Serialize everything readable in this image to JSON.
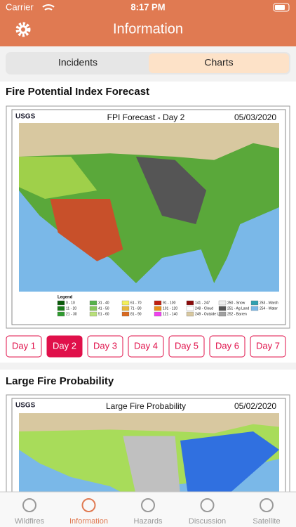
{
  "status_bar": {
    "carrier": "Carrier",
    "time": "8:17 PM"
  },
  "header": {
    "title": "Information"
  },
  "segments": {
    "items": [
      "Incidents",
      "Charts"
    ],
    "selected": 1
  },
  "sections": [
    {
      "title": "Fire Potential Index Forecast",
      "image": {
        "logo": "USGS",
        "title": "FPI Forecast - Day 2",
        "date": "05/03/2020",
        "legend_title": "Legend",
        "legend": [
          {
            "label": "0 - 10",
            "color": "#0a5a0a"
          },
          {
            "label": "11 - 20",
            "color": "#1a7a1a"
          },
          {
            "label": "21 - 30",
            "color": "#2f9a2f"
          },
          {
            "label": "31 - 40",
            "color": "#55b24a"
          },
          {
            "label": "41 - 50",
            "color": "#86c85a"
          },
          {
            "label": "51 - 60",
            "color": "#b9e07a"
          },
          {
            "label": "61 - 70",
            "color": "#f3ef5a"
          },
          {
            "label": "71 - 80",
            "color": "#e6b63a"
          },
          {
            "label": "81 - 90",
            "color": "#d96a20"
          },
          {
            "label": "91 - 100",
            "color": "#c02010"
          },
          {
            "label": "101 - 120",
            "color": "#e8901a"
          },
          {
            "label": "121 - 140",
            "color": "#f040f0"
          },
          {
            "label": "141 - 247",
            "color": "#8a0a0a"
          },
          {
            "label": "248 - Cloud",
            "color": "#ffffff"
          },
          {
            "label": "249 - Outside US",
            "color": "#d8c8a0"
          },
          {
            "label": "250 - Snow",
            "color": "#eeeeee"
          },
          {
            "label": "251 - Ag Land",
            "color": "#555555"
          },
          {
            "label": "252 - Barren",
            "color": "#a0a0a0"
          },
          {
            "label": "253 - Marsh",
            "color": "#30a0b0"
          },
          {
            "label": "254 - Water",
            "color": "#7ab8e8"
          }
        ]
      },
      "days": [
        "Day 1",
        "Day 2",
        "Day 3",
        "Day 4",
        "Day 5",
        "Day 6",
        "Day 7"
      ],
      "selected_day": 1
    },
    {
      "title": "Large Fire Probability",
      "image": {
        "logo": "USGS",
        "title": "Large Fire Probability",
        "date": "05/02/2020"
      }
    }
  ],
  "tabs": {
    "items": [
      "Wildfires",
      "Information",
      "Hazards",
      "Discussion",
      "Satellite"
    ],
    "selected": 1
  }
}
